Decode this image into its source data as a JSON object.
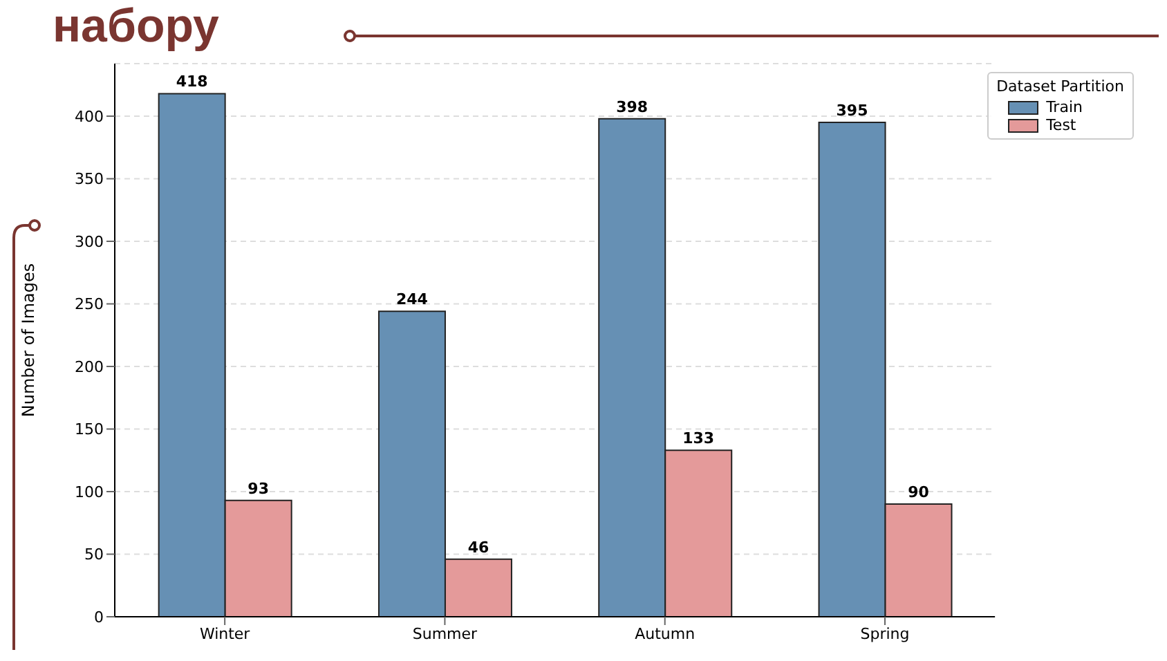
{
  "chart_data": {
    "type": "bar",
    "title": "набору",
    "ylabel": "Number of Images",
    "legend_title": "Dataset Partition",
    "categories": [
      "Winter",
      "Summer",
      "Autumn",
      "Spring"
    ],
    "series": [
      {
        "name": "Train",
        "color": "#6690b4",
        "values": [
          418,
          244,
          398,
          395
        ]
      },
      {
        "name": "Test",
        "color": "#e49a9a",
        "values": [
          93,
          46,
          133,
          90
        ]
      }
    ],
    "ylim": [
      0,
      442
    ],
    "yticks": [
      0,
      50,
      100,
      150,
      200,
      250,
      300,
      350,
      400
    ],
    "grid": "y",
    "legend": "top right",
    "data_labels": true
  }
}
